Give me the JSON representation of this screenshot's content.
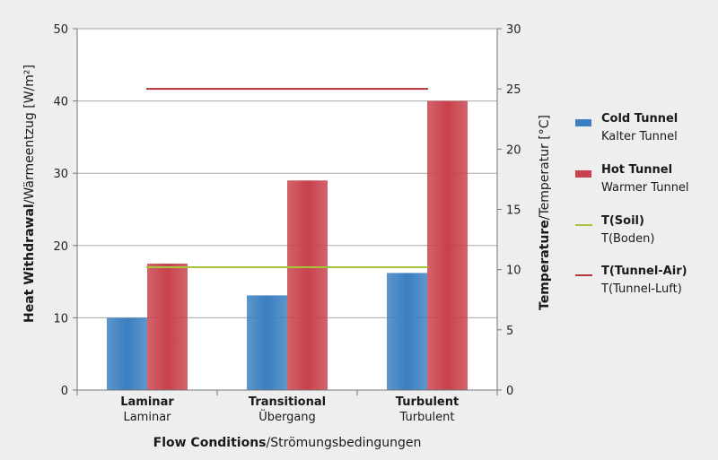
{
  "chart_data": {
    "type": "bar",
    "categories": [
      {
        "primary": "Laminar",
        "secondary": "Laminar"
      },
      {
        "primary": "Transitional",
        "secondary": "Übergang"
      },
      {
        "primary": "Turbulent",
        "secondary": "Turbulent"
      }
    ],
    "series": [
      {
        "name": "Cold Tunnel",
        "name_secondary": "Kalter Tunnel",
        "axis": "left",
        "kind": "bar",
        "color": "#3a7fc0",
        "values": [
          10,
          13.1,
          16.2
        ]
      },
      {
        "name": "Hot Tunnel",
        "name_secondary": "Warmer Tunnel",
        "axis": "left",
        "kind": "bar",
        "color": "#c8414b",
        "values": [
          17.5,
          29,
          40
        ]
      },
      {
        "name": "T(Soil)",
        "name_secondary": "T(Boden)",
        "axis": "right",
        "kind": "line",
        "color": "#a6c43c",
        "value": 10.2
      },
      {
        "name": "T(Tunnel-Air)",
        "name_secondary": "T(Tunnel-Luft)",
        "axis": "right",
        "kind": "line",
        "color": "#b5333d",
        "value": 25
      }
    ],
    "y_left": {
      "label_bold": "Heat Withdrawal",
      "label_normal": "/Wärmeentzug [W/m²]",
      "lim": [
        0,
        50
      ],
      "ticks": [
        0,
        10,
        20,
        30,
        40,
        50
      ]
    },
    "y_right": {
      "label_bold": "Temperature",
      "label_normal": "/Temperatur [°C]",
      "lim": [
        0,
        30
      ],
      "ticks": [
        0,
        5,
        10,
        15,
        20,
        25,
        30
      ]
    },
    "x_axis": {
      "label_bold": "Flow Conditions",
      "label_normal": "/Strömungsbedingungen"
    },
    "grid": true,
    "legend_position": "right"
  }
}
